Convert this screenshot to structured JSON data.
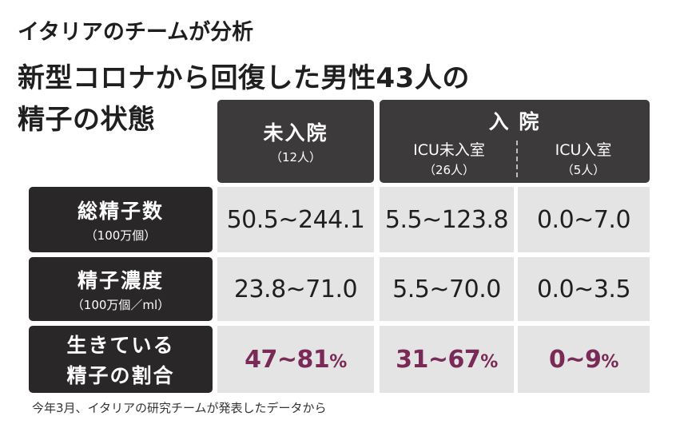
{
  "title": {
    "kicker": "イタリアのチームが分析",
    "line1": "新型コロナから回復した男性43人の",
    "line2": "精子の状態"
  },
  "chart_data": {
    "type": "table",
    "columns": [
      {
        "group": "未入院",
        "label": "",
        "sub": "（12人）"
      },
      {
        "group": "入 院",
        "label": "ICU未入室",
        "sub": "（26人）"
      },
      {
        "group": "入 院",
        "label": "ICU入室",
        "sub": "（5人）"
      }
    ],
    "header": {
      "col1_title": "未入院",
      "col1_sub": "（12人）",
      "group_title": "入 院",
      "col2_title": "ICU未入室",
      "col2_sub": "（26人）",
      "col3_title": "ICU入室",
      "col3_sub": "（5人）"
    },
    "rows": [
      {
        "label": "総精子数",
        "sub": "（100万個）",
        "values": [
          "50.5~244.1",
          "5.5~123.8",
          "0.0~7.0"
        ]
      },
      {
        "label": "精子濃度",
        "sub": "（100万個／ml）",
        "values": [
          "23.8~71.0",
          "5.5~70.0",
          "0.0~3.5"
        ]
      },
      {
        "label1": "生きている",
        "label2": "精子の割合",
        "values": [
          "47~81",
          "31~67",
          "0~9"
        ],
        "unit": "%"
      }
    ]
  },
  "source": "今年3月、イタリアの研究チームが発表したデータから",
  "colors": {
    "header": "#3d3a3b",
    "row_header": "#2a2728",
    "cell": "#e4e4e4",
    "percent": "#7a2a57"
  }
}
